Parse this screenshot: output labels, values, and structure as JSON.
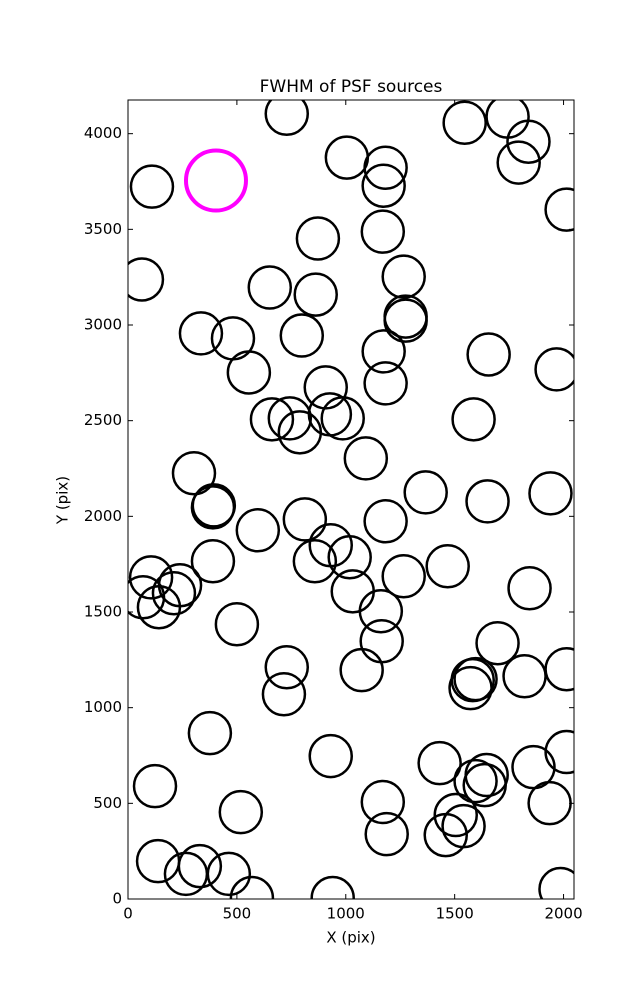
{
  "chart_data": {
    "type": "scatter",
    "title": "FWHM of PSF sources",
    "x_label": "X (pix)",
    "y_label": "Y (pix)",
    "xlim": [
      0,
      2048
    ],
    "ylim": [
      0,
      4176
    ],
    "xticks": [
      0,
      500,
      1000,
      1500,
      2000
    ],
    "yticks": [
      0,
      500,
      1000,
      1500,
      2000,
      2500,
      3000,
      3500,
      4000
    ],
    "series": [
      {
        "color": "#000000",
        "x": [
          729,
          110,
          1005,
          1183,
          1174,
          1546,
          1743,
          1839,
          1794,
          2014,
          872,
          1170,
          64,
          651,
          862,
          1266,
          1275,
          1275,
          335,
          482,
          798,
          1174,
          555,
          1656,
          1183,
          1968,
          908,
          661,
          743,
          789,
          927,
          986,
          1587,
          1092,
          303,
          394,
          390,
          1367,
          1651,
          1940,
          596,
          812,
          1183,
          931,
          1018,
          858,
          390,
          1468,
          1266,
          106,
          239,
          211,
          69,
          142,
          1032,
          1161,
          1844,
          500,
          1165,
          1697,
          729,
          1073,
          716,
          1583,
          1596,
          1573,
          1821,
          2014,
          376,
          931,
          1431,
          1862,
          2014,
          1647,
          1596,
          1638,
          124,
          518,
          1170,
          1505,
          1541,
          1936,
          1188,
          1459,
          138,
          330,
          266,
          463,
          569,
          940,
          1986
        ],
        "values": [
          4104,
          3723,
          3875,
          3822,
          3728,
          4057,
          4089,
          3958,
          3849,
          3603,
          3452,
          3488,
          3238,
          3196,
          3159,
          3253,
          3044,
          3023,
          2956,
          2930,
          2945,
          2862,
          2752,
          2846,
          2695,
          2768,
          2674,
          2507,
          2512,
          2439,
          2533,
          2512,
          2507,
          2303,
          2225,
          2057,
          2047,
          2125,
          2078,
          2120,
          1927,
          1984,
          1974,
          1849,
          1786,
          1765,
          1765,
          1739,
          1687,
          1681,
          1640,
          1598,
          1577,
          1525,
          1608,
          1504,
          1624,
          1436,
          1347,
          1337,
          1211,
          1196,
          1070,
          1144,
          1149,
          1102,
          1164,
          1201,
          867,
          747,
          710,
          689,
          768,
          648,
          616,
          595,
          590,
          454,
          507,
          439,
          381,
          501,
          339,
          334,
          198,
          172,
          131,
          131,
          5,
          5,
          52
        ]
      },
      {
        "color": "#ff00ff",
        "x": [
          404
        ],
        "values": [
          3755
        ]
      }
    ]
  }
}
